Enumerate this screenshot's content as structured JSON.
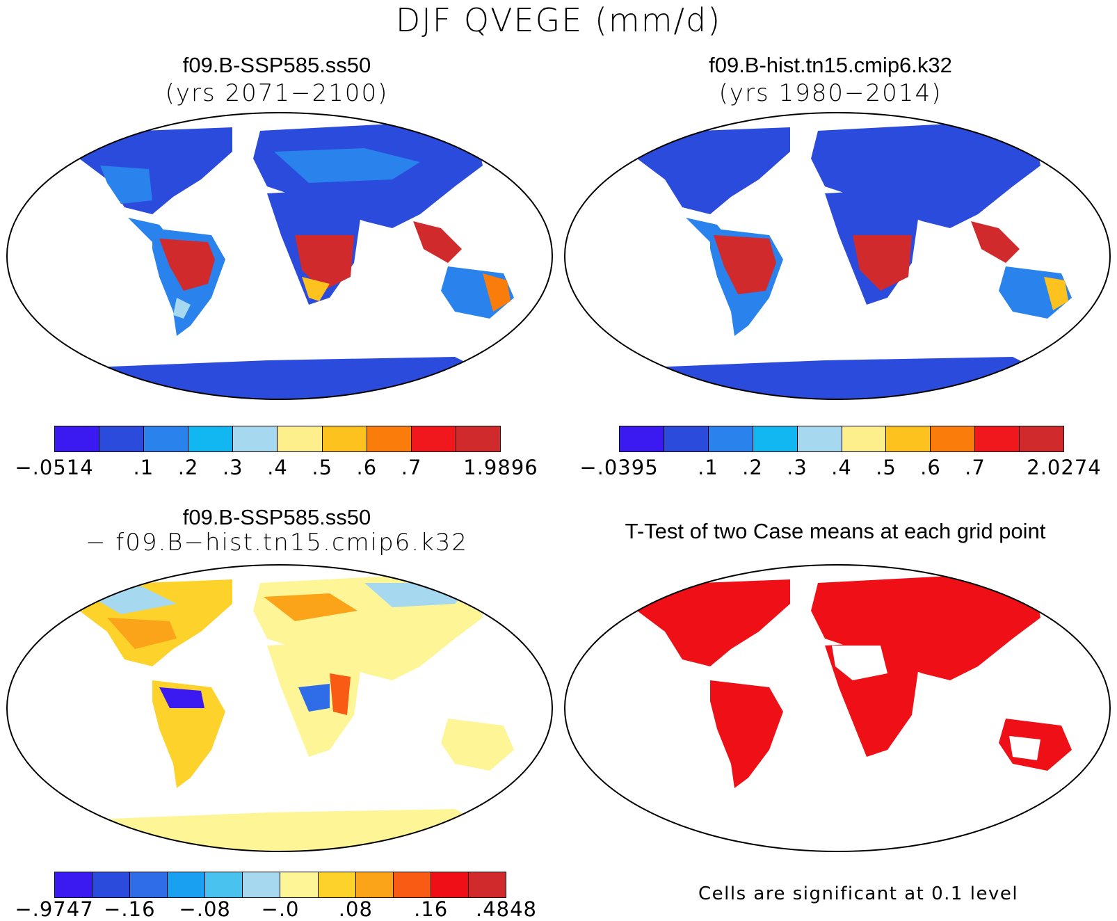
{
  "figure_title": "DJF QVEGE (mm/d)",
  "panels": [
    {
      "title": "f09.B-SSP585.ss50",
      "subtitle": "(yrs 2071−2100)",
      "colorbar": {
        "colors": [
          "#3a1af0",
          "#2b4bdc",
          "#2a82ec",
          "#12b6f0",
          "#a6d8f0",
          "#fdf08c",
          "#fdc21d",
          "#fa7d0c",
          "#f0181c",
          "#d12a2c"
        ],
        "labels": [
          "−.0514",
          ".1",
          ".2",
          ".3",
          ".4",
          ".5",
          ".6",
          ".7",
          "1.9896"
        ]
      }
    },
    {
      "title": "f09.B-hist.tn15.cmip6.k32",
      "subtitle": "(yrs 1980−2014)",
      "colorbar": {
        "colors": [
          "#3a1af0",
          "#2b4bdc",
          "#2a82ec",
          "#12b6f0",
          "#a6d8f0",
          "#fdf08c",
          "#fdc21d",
          "#fa7d0c",
          "#f0181c",
          "#d12a2c"
        ],
        "labels": [
          "−.0395",
          ".1",
          ".2",
          ".3",
          ".4",
          ".5",
          ".6",
          ".7",
          "2.0274"
        ]
      }
    },
    {
      "title": "f09.B-SSP585.ss50",
      "subtitle": "− f09.B−hist.tn15.cmip6.k32",
      "colorbar": {
        "colors": [
          "#3a1af0",
          "#2b4bdc",
          "#2f6ce8",
          "#1aa0f0",
          "#49c2f0",
          "#a6d8f0",
          "#fdf596",
          "#fdd22a",
          "#fba41a",
          "#f95a14",
          "#ee1016",
          "#d12a2c"
        ],
        "labels": [
          "−.9747",
          "−.16",
          "−.08",
          "−.0",
          ".08",
          ".16",
          ".4848"
        ]
      }
    },
    {
      "title": "T-Test of two Case means at each grid point",
      "note": "Cells are significant at 0.1 level"
    }
  ]
}
